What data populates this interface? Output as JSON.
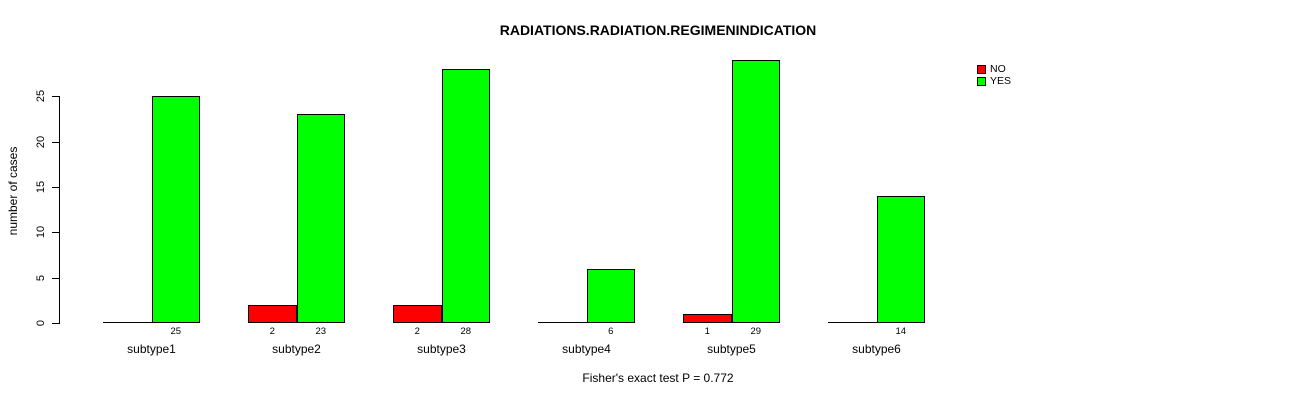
{
  "chart_data": {
    "type": "bar",
    "title": "RADIATIONS.RADIATION.REGIMENINDICATION",
    "xlabel": "",
    "ylabel": "number of cases",
    "caption": "Fisher's exact test P = 0.772",
    "categories": [
      "subtype1",
      "subtype2",
      "subtype3",
      "subtype4",
      "subtype5",
      "subtype6"
    ],
    "series": [
      {
        "name": "NO",
        "color": "#ff0000",
        "values": [
          0,
          2,
          2,
          0,
          1,
          0
        ]
      },
      {
        "name": "YES",
        "color": "#00ff00",
        "values": [
          25,
          23,
          28,
          6,
          29,
          14
        ]
      }
    ],
    "bar_value_labels": [
      [
        null,
        "2",
        "2",
        null,
        "1",
        null
      ],
      [
        "25",
        "23",
        "28",
        "6",
        "29",
        "14"
      ]
    ],
    "yticks": [
      0,
      5,
      10,
      15,
      20,
      25
    ],
    "ylim": [
      0,
      29
    ],
    "grid": false,
    "legend_position": "top-right",
    "bar_border_color": "#000000",
    "background_color": "#ffffff",
    "value_label_rule": "labels shown only for values greater than 0"
  }
}
